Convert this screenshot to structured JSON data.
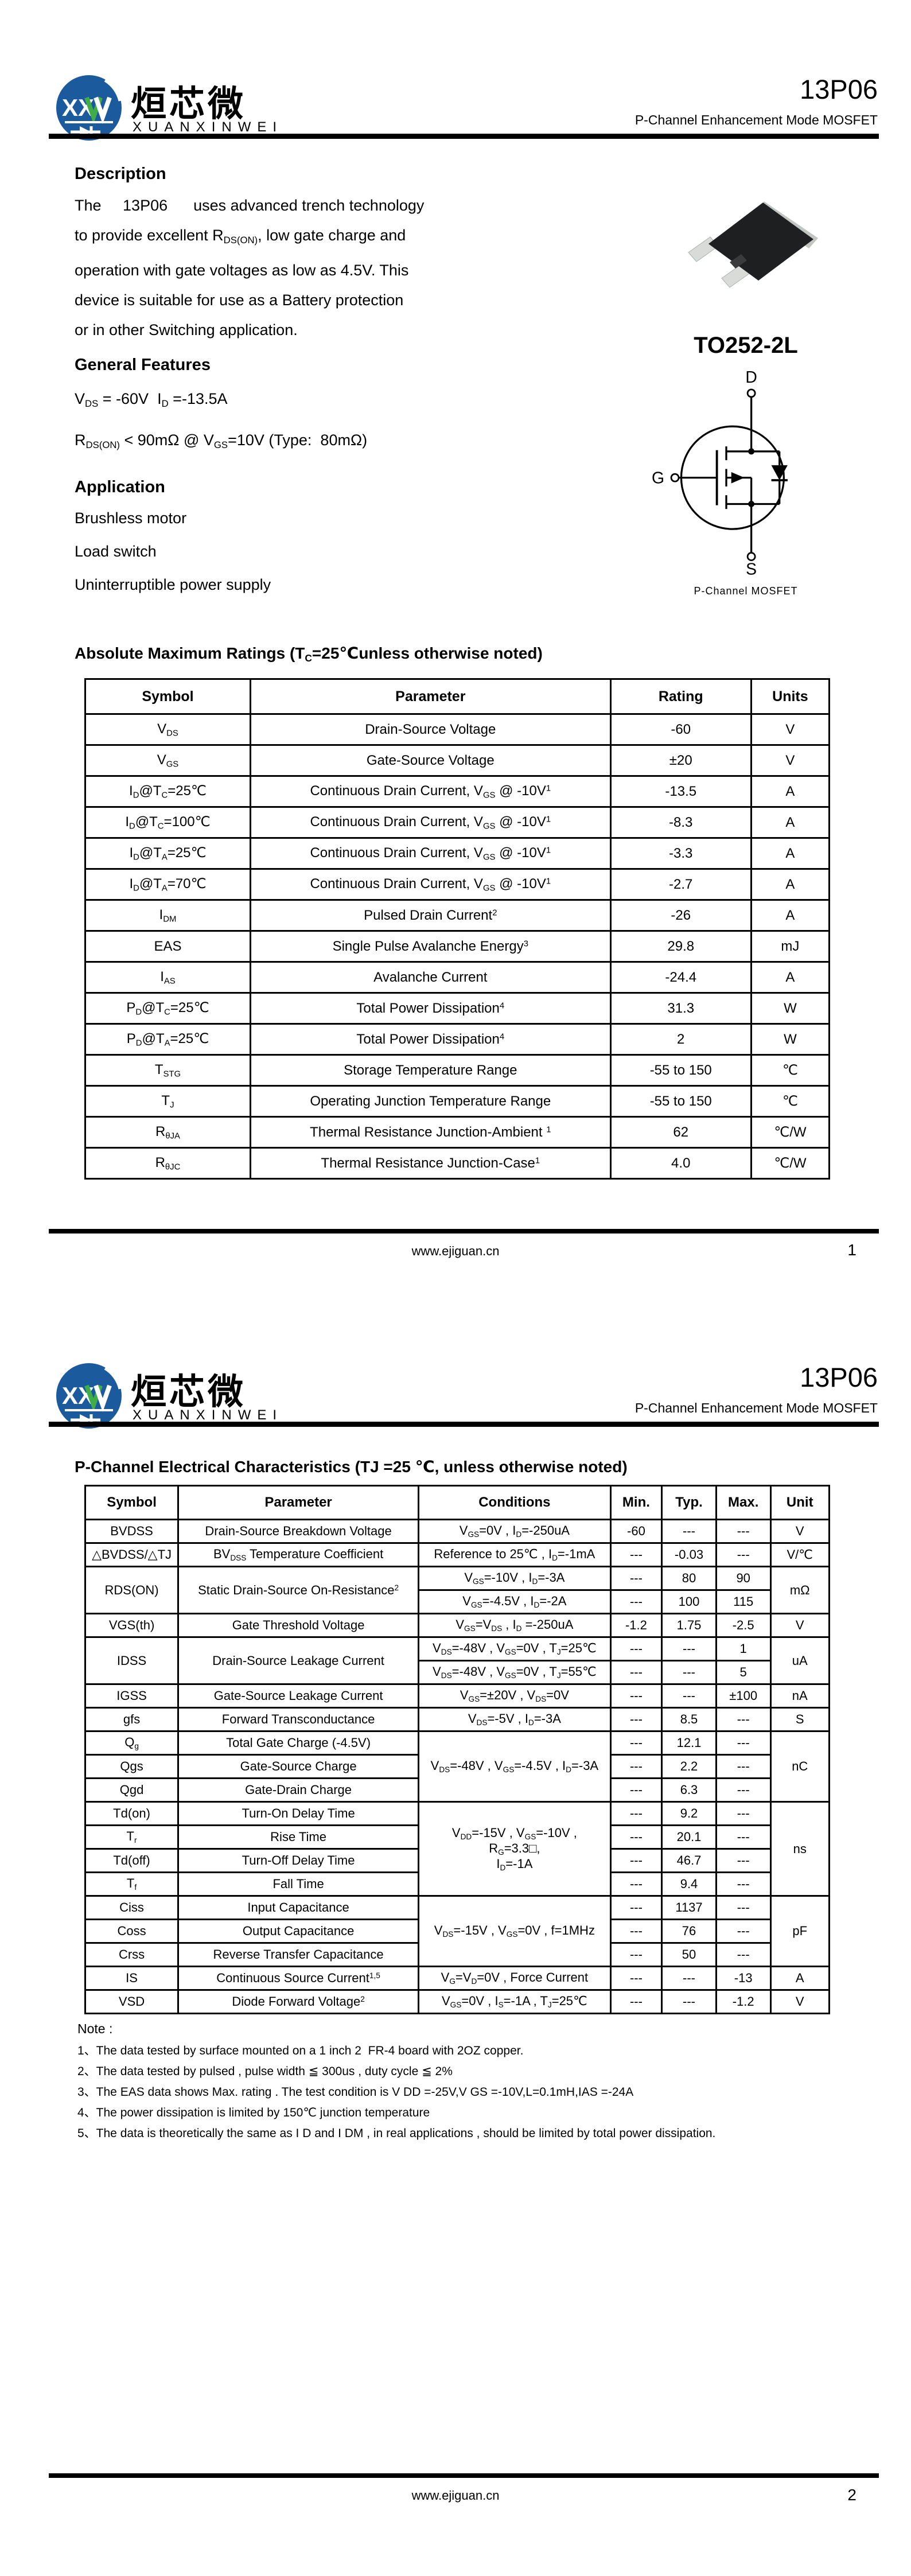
{
  "brand": {
    "logo_xx": "XX",
    "cn": "烜芯微",
    "en": "XUANXINWEI",
    "part": "13P06",
    "subtitle": "P-Channel Enhancement Mode MOSFET",
    "blue": "#1b5a9d",
    "green": "#3fae49"
  },
  "footer": {
    "site": "www.ejiguan.cn",
    "page1": "1",
    "page2": "2"
  },
  "page1": {
    "description": {
      "heading": "Description",
      "lines": [
        "The     13P06      uses advanced trench technology",
        "to provide excellent R<sub>DS(ON)</sub>, low gate charge and",
        "operation with gate voltages as low as 4.5V. This",
        "device is suitable for use as a Battery protection",
        "or in other Switching application."
      ]
    },
    "features": {
      "heading": "General Features",
      "lines": [
        "V<sub>DS</sub> = -60V  I<sub>D</sub> =-13.5A",
        "R<sub>DS(ON)</sub> &lt; 90mΩ @ V<sub>GS</sub>=10V (Type:  80mΩ)"
      ]
    },
    "application": {
      "heading": "Application",
      "items": [
        "Brushless motor",
        "Load switch",
        "Uninterruptible power supply"
      ]
    },
    "package": {
      "name": "TO252-2L",
      "caption": "P-Channel MOSFET",
      "pin_d": "D",
      "pin_g": "G",
      "pin_s": "S"
    },
    "abs": {
      "title": "Absolute Maximum Ratings (T<sub>C</sub>=25℃unless otherwise noted)",
      "headers": [
        "Symbol",
        "Parameter",
        "Rating",
        "Units"
      ],
      "rows": [
        [
          "V<sub>DS</sub>",
          "Drain-Source Voltage",
          "-60",
          "V"
        ],
        [
          "V<sub>GS</sub>",
          "Gate-Source Voltage",
          "±20",
          "V"
        ],
        [
          "I<sub>D</sub>@T<sub>C</sub>=25℃",
          "Continuous Drain Current, V<sub>GS</sub> @ -10V<sup>1</sup>",
          "-13.5",
          "A"
        ],
        [
          "I<sub>D</sub>@T<sub>C</sub>=100℃",
          "Continuous Drain Current, V<sub>GS</sub> @ -10V<sup>1</sup>",
          "-8.3",
          "A"
        ],
        [
          "I<sub>D</sub>@T<sub>A</sub>=25℃",
          "Continuous Drain Current, V<sub>GS</sub> @ -10V<sup>1</sup>",
          "-3.3",
          "A"
        ],
        [
          "I<sub>D</sub>@T<sub>A</sub>=70℃",
          "Continuous Drain Current, V<sub>GS</sub> @ -10V<sup>1</sup>",
          "-2.7",
          "A"
        ],
        [
          "I<sub>DM</sub>",
          "Pulsed Drain Current<sup>2</sup>",
          "-26",
          "A"
        ],
        [
          "EAS",
          "Single Pulse Avalanche Energy<sup>3</sup>",
          "29.8",
          "mJ"
        ],
        [
          "I<sub>AS</sub>",
          "Avalanche Current",
          "-24.4",
          "A"
        ],
        [
          "P<sub>D</sub>@T<sub>C</sub>=25℃",
          "Total Power Dissipation<sup>4</sup>",
          "31.3",
          "W"
        ],
        [
          "P<sub>D</sub>@T<sub>A</sub>=25℃",
          "Total Power Dissipation<sup>4</sup>",
          "2",
          "W"
        ],
        [
          "T<sub>STG</sub>",
          "Storage Temperature Range",
          "-55 to 150",
          "℃"
        ],
        [
          "T<sub>J</sub>",
          "Operating Junction Temperature Range",
          "-55 to 150",
          "℃"
        ],
        [
          "R<sub>θJA</sub>",
          "Thermal Resistance Junction-Ambient <sup>1</sup>",
          "62",
          "℃/W"
        ],
        [
          "R<sub>θJC</sub>",
          "Thermal Resistance Junction-Case<sup>1</sup>",
          "4.0",
          "℃/W"
        ]
      ]
    }
  },
  "page2": {
    "elec": {
      "title": "P-Channel Electrical Characteristics (TJ =25 ℃, unless otherwise noted)",
      "headers": [
        "Symbol",
        "Parameter",
        "Conditions",
        "Min.",
        "Typ.",
        "Max.",
        "Unit"
      ],
      "rows": [
        [
          "BVDSS",
          "Drain-Source Breakdown Voltage",
          "V<sub>GS</sub>=0V , I<sub>D</sub>=-250uA",
          "-60",
          "---",
          "---",
          "V"
        ],
        [
          "△BVDSS/△TJ",
          "BV<sub>DSS</sub> Temperature Coefficient",
          "Reference to 25℃ , I<sub>D</sub>=-1mA",
          "---",
          "-0.03",
          "---",
          "V/℃"
        ],
        [
          "RDS(ON)",
          "Static Drain-Source On-Resistance<sup>2</sup>",
          "V<sub>GS</sub>=-10V , I<sub>D</sub>=-3A",
          "---",
          "80",
          "90",
          "mΩ"
        ],
        [
          "V<sub>GS</sub>=-4.5V , I<sub>D</sub>=-2A",
          "---",
          "100",
          "115"
        ],
        [
          "VGS(th)",
          "Gate Threshold Voltage",
          "V<sub>GS</sub>=V<sub>DS</sub> , I<sub>D</sub> =-250uA",
          "-1.2",
          "1.75",
          "-2.5",
          "V"
        ],
        [
          "IDSS",
          "Drain-Source Leakage Current",
          "V<sub>DS</sub>=-48V , V<sub>GS</sub>=0V , T<sub>J</sub>=25℃",
          "---",
          "---",
          "1",
          "uA"
        ],
        [
          "V<sub>DS</sub>=-48V , V<sub>GS</sub>=0V , T<sub>J</sub>=55℃",
          "---",
          "---",
          "5"
        ],
        [
          "IGSS",
          "Gate-Source Leakage Current",
          "V<sub>GS</sub>=±20V , V<sub>DS</sub>=0V",
          "---",
          "---",
          "±100",
          "nA"
        ],
        [
          "gfs",
          "Forward Transconductance",
          "V<sub>DS</sub>=-5V , I<sub>D</sub>=-3A",
          "---",
          "8.5",
          "---",
          "S"
        ],
        [
          "Q<sub>g</sub>",
          "Total Gate Charge (-4.5V)",
          "V<sub>DS</sub>=-48V , V<sub>GS</sub>=-4.5V , I<sub>D</sub>=-3A",
          "---",
          "12.1",
          "---",
          "nC"
        ],
        [
          "Qgs",
          "Gate-Source Charge",
          "---",
          "2.2",
          "---"
        ],
        [
          "Qgd",
          "Gate-Drain Charge",
          "---",
          "6.3",
          "---"
        ],
        [
          "Td(on)",
          "Turn-On Delay Time",
          "V<sub>DD</sub>=-15V , V<sub>GS</sub>=-10V ,<br>R<sub>G</sub>=3.3□,<br>I<sub>D</sub>=-1A",
          "---",
          "9.2",
          "---",
          "ns"
        ],
        [
          "T<sub>r</sub>",
          "Rise Time",
          "---",
          "20.1",
          "---"
        ],
        [
          "Td(off)",
          "Turn-Off Delay Time",
          "---",
          "46.7",
          "---"
        ],
        [
          "T<sub>f</sub>",
          "Fall Time",
          "---",
          "9.4",
          "---"
        ],
        [
          "Ciss",
          "Input Capacitance",
          "V<sub>DS</sub>=-15V , V<sub>GS</sub>=0V , f=1MHz",
          "---",
          "1137",
          "---",
          "pF"
        ],
        [
          "Coss",
          "Output Capacitance",
          "---",
          "76",
          "---"
        ],
        [
          "Crss",
          "Reverse Transfer Capacitance",
          "---",
          "50",
          "---"
        ],
        [
          "IS",
          "Continuous Source Current<sup>1,5</sup>",
          "V<sub>G</sub>=V<sub>D</sub>=0V , Force Current",
          "---",
          "---",
          "-13",
          "A"
        ],
        [
          "VSD",
          "Diode Forward Voltage<sup>2</sup>",
          "V<sub>GS</sub>=0V , I<sub>S</sub>=-1A , T<sub>J</sub>=25℃",
          "---",
          "---",
          "-1.2",
          "V"
        ]
      ]
    },
    "notes": {
      "heading": "Note :",
      "items": [
        "1、The data tested by surface mounted on a 1 inch 2  FR-4 board with 2OZ copper.",
        "2、The data tested by pulsed , pulse width ≦ 300us , duty cycle ≦ 2%",
        "3、The EAS data shows Max. rating . The test condition is V DD =-25V,V GS =-10V,L=0.1mH,IAS =-24A",
        "4、The power dissipation is limited by 150℃ junction temperature",
        "5、The data is theoretically the same as I D and I DM , in real applications , should be limited by total power dissipation."
      ]
    }
  }
}
